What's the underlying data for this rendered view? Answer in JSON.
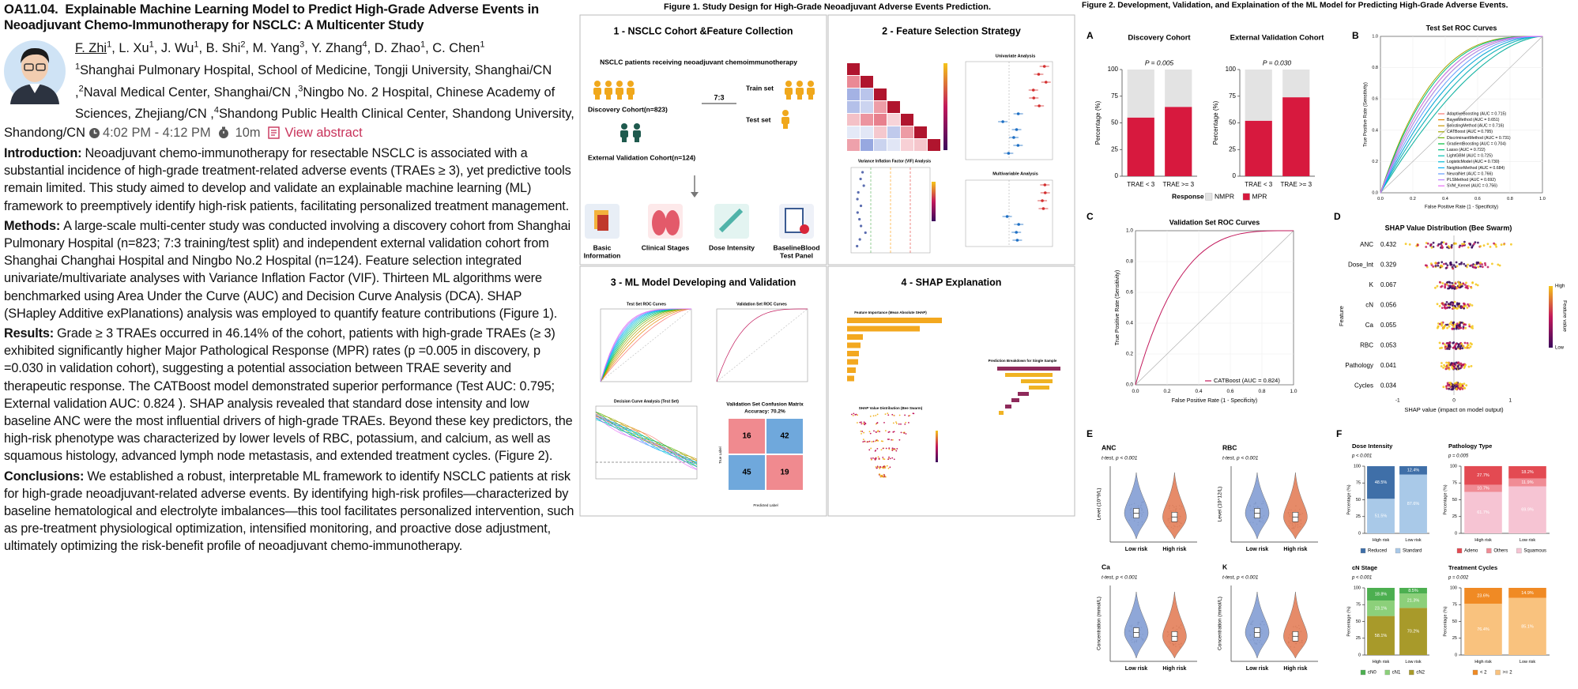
{
  "header": {
    "code": "OA11.04.",
    "title": "Explainable Machine Learning Model to Predict High-Grade Adverse Events in Neoadjuvant Chemo-Immunotherapy for NSCLC: A Multicenter Study",
    "authors": [
      {
        "name": "F. Zhi",
        "aff": "1"
      },
      {
        "name": "L. Xu",
        "aff": "1"
      },
      {
        "name": "J. Wu",
        "aff": "1"
      },
      {
        "name": "B. Shi",
        "aff": "2"
      },
      {
        "name": "M. Yang",
        "aff": "3"
      },
      {
        "name": "Y. Zhang",
        "aff": "4"
      },
      {
        "name": "D. Zhao",
        "aff": "1"
      },
      {
        "name": "C. Chen",
        "aff": "1"
      }
    ],
    "affiliations": [
      {
        "num": "1",
        "text": "Shanghai Pulmonary Hospital, School of Medicine, Tongji University, Shanghai/CN ,"
      },
      {
        "num": "2",
        "text": "Naval Medical Center, Shanghai/CN ,"
      },
      {
        "num": "3",
        "text": "Ningbo No. 2 Hospital, Chinese Academy of Sciences, Zhejiang/CN ,"
      },
      {
        "num": "4",
        "text": "Shandong Public Health Clinical Center, Shandong University, Shandong/CN"
      }
    ],
    "time": "4:02 PM - 4:12 PM",
    "duration": "10m",
    "link": "View abstract"
  },
  "sections": [
    {
      "label": "Introduction:",
      "text": "Neoadjuvant chemo-immunotherapy for resectable NSCLC is associated with a substantial incidence of high-grade treatment-related adverse events (TRAEs ≥ 3), yet predictive tools remain limited. This study aimed to develop and validate an explainable machine learning (ML) framework to preemptively identify high-risk patients, facilitating personalized treatment management."
    },
    {
      "label": "Methods:",
      "text": "A large-scale multi-center study was conducted involving a discovery cohort from Shanghai Pulmonary Hospital (n=823; 7:3 training/test split) and independent external validation cohort from Shanghai Changhai Hospital and Ningbo No.2 Hospital (n=124). Feature selection integrated univariate/multivariate analyses with Variance Inflation Factor (VIF). Thirteen ML algorithms were benchmarked using Area Under the Curve (AUC) and Decision Curve Analysis (DCA). SHAP (SHapley Additive exPlanations) analysis was employed to quantify feature contributions (Figure 1)."
    },
    {
      "label": "Results:",
      "text": "Grade ≥ 3 TRAEs occurred in 46.14% of the cohort, patients with high-grade TRAEs (≥ 3) exhibited significantly higher Major Pathological Response (MPR) rates (p =0.005 in discovery, p =0.030 in validation cohort), suggesting a potential association between TRAE severity and therapeutic response. The CATBoost model demonstrated superior performance (Test AUC: 0.795; External validation AUC: 0.824 ). SHAP analysis revealed that standard dose intensity and low baseline ANC were the most influential drivers of high-grade TRAEs. Beyond these key predictors, the high-risk phenotype was characterized by lower levels of RBC, potassium, and calcium, as well as squamous histology, advanced lymph node metastasis, and extended treatment cycles. (Figure 2)."
    },
    {
      "label": "Conclusions:",
      "text": "We established a robust, interpretable ML framework to identify NSCLC patients at risk for high-grade neoadjuvant-related adverse events. By identifying high-risk profiles—characterized by baseline hematological and electrolyte imbalances—this tool facilitates personalized intervention, such as pre-treatment physiological optimization, intensified monitoring, and proactive dose adjustment, ultimately optimizing the risk-benefit profile of neoadjuvant chemo-immunotherapy."
    }
  ],
  "figure1": {
    "title": "Figure 1. Study Design for High-Grade Neoadjuvant Adverse Events Prediction.",
    "panels": [
      "1 - NSCLC Cohort &Feature Collection",
      "2 - Feature Selection Strategy",
      "3 - ML Model Developing and Validation",
      "4 - SHAP Explanation"
    ],
    "cohort": {
      "population": "NSCLC patients receiving neoadjuvant chemoimmunotherapy",
      "discovery": "Discovery Cohort(n=823)",
      "ratio": "7:3",
      "train": "Train set",
      "test": "Test set",
      "external": "External Validation Cohort(n=124)",
      "features": [
        [
          "Basic",
          "Information"
        ],
        [
          "Clinical Stages"
        ],
        [
          "Dose Intensity"
        ],
        [
          "BaselineBlood",
          "Test Panel"
        ]
      ]
    },
    "selection": {
      "univariate": "Univariate Analysis",
      "multivariable": "Multivariable Analysis",
      "vif": "Variance Inflation Factor (VIF) Analysis"
    },
    "model": {
      "test_roc": "Test Set ROC Curves",
      "val_roc": "Validation Set ROC Curves",
      "dca": "Decision Curve Analysis (Test Set)",
      "cm_title": "Validation Set Confusion Matrix",
      "accuracy": "Accuracy: 70.2%",
      "cm": [
        [
          "16",
          "42"
        ],
        [
          "45",
          "19"
        ]
      ],
      "true_label": "True Label",
      "pred_label": "Predicted Label"
    },
    "shap": {
      "importance": "Feature Importance (Mean Absolute SHAP)",
      "breakdown": "Prediction Breakdown for Single Sample",
      "beeswarm": "SHAP Value Distribution (Bee Swarm)"
    }
  },
  "figure2": {
    "title": "Figure 2. Development, Validation, and Explaination of the ML Model for Predicting High-Grade Adverse Events.",
    "letters": [
      "A",
      "B",
      "C",
      "D",
      "E",
      "F"
    ],
    "B": {
      "title": "Test Set ROC Curves",
      "xlabel": "False Positive Rate (1 - Specificity)",
      "ylabel": "True Positive Rate (Sensitivity)",
      "ticks": [
        "0.0",
        "0.2",
        "0.4",
        "0.6",
        "0.8",
        "1.0"
      ],
      "legend": [
        {
          "label": "AdaptiveBoosting (AUC = 0.715)",
          "color": "#f8766d"
        },
        {
          "label": "BayesMethod (AUC = 0.651)",
          "color": "#e58700"
        },
        {
          "label": "BoostingMethod (AUC = 0.716)",
          "color": "#c99800"
        },
        {
          "label": "CATBoost (AUC = 0.795)",
          "color": "#a3a500"
        },
        {
          "label": "DiscriminantMethod (AUC = 0.731)",
          "color": "#6bb100"
        },
        {
          "label": "GradientBoosting (AUC = 0.704)",
          "color": "#00ba38"
        },
        {
          "label": "Lasso (AUC = 0.722)",
          "color": "#00bf7d"
        },
        {
          "label": "LightGBM (AUC = 0.725)",
          "color": "#00c0af"
        },
        {
          "label": "LogisticModel (AUC = 0.730)",
          "color": "#00bcd8"
        },
        {
          "label": "NeighborMethod (AUC = 0.684)",
          "color": "#00b0f6"
        },
        {
          "label": "NeuralNet (AUC = 0.766)",
          "color": "#619cff"
        },
        {
          "label": "PLSMethod (AUC = 0.692)",
          "color": "#b983ff"
        },
        {
          "label": "SVM_Kernel (AUC = 0.756)",
          "color": "#e76bf3"
        }
      ]
    },
    "C": {
      "title": "Validation Set ROC Curves",
      "xlabel": "False Positive Rate (1 - Specificity)",
      "ylabel": "True Positive Rate (Sensitivity)",
      "ticks": [
        "0.0",
        "0.2",
        "0.4",
        "0.6",
        "0.8",
        "1.0"
      ],
      "legend": [
        {
          "label": "CATBoost (AUC = 0.824)",
          "color": "#c2185b"
        }
      ]
    },
    "D": {
      "title": "SHAP Value Distribution (Bee Swarm)",
      "xlabel": "SHAP value (impact on model output)",
      "ylabel": "Feature",
      "ticks": [
        "-1",
        "0",
        "1"
      ],
      "colorbar": "Feature value",
      "high": "High",
      "low": "Low",
      "features": [
        {
          "name": "ANC",
          "value": "0.432"
        },
        {
          "name": "Dose_Int",
          "value": "0.329"
        },
        {
          "name": "K",
          "value": "0.067"
        },
        {
          "name": "cN",
          "value": "0.056"
        },
        {
          "name": "Ca",
          "value": "0.055"
        },
        {
          "name": "RBC",
          "value": "0.053"
        },
        {
          "name": "Pathology",
          "value": "0.041"
        },
        {
          "name": "Cycles",
          "value": "0.034"
        }
      ]
    },
    "E": {
      "categories": [
        "Low risk",
        "High risk"
      ],
      "colors": [
        "#7b98d1",
        "#e2774f"
      ],
      "panels": [
        {
          "name": "ANC",
          "test": "t-test, p < 0.001",
          "ylabel": "Level (10^9/L)"
        },
        {
          "name": "RBC",
          "test": "t-test, p < 0.001",
          "ylabel": "Level (10^12/L)"
        },
        {
          "name": "Ca",
          "test": "t-test, p < 0.001",
          "ylabel": "Concentration (mmol/L)"
        },
        {
          "name": "K",
          "test": "t-test, p < 0.001",
          "ylabel": "Concentration (mmol/L)"
        }
      ]
    }
  },
  "chart_data": [
    {
      "type": "bar",
      "stacked": true,
      "title": "Discovery Cohort",
      "subtitle": "P = 0.005",
      "ylabel": "Percentage (%)",
      "legend_title": "Response",
      "categories": [
        "TRAE < 3",
        "TRAE >= 3"
      ],
      "ylim": [
        0,
        100
      ],
      "yticks": [
        0,
        25,
        50,
        75,
        100
      ],
      "series": [
        {
          "name": "MPR",
          "color": "#d7193e",
          "values": [
            55,
            65
          ]
        },
        {
          "name": "NMPR",
          "color": "#e3e3e3",
          "values": [
            45,
            35
          ]
        }
      ]
    },
    {
      "type": "bar",
      "stacked": true,
      "title": "External Validation Cohort",
      "subtitle": "P = 0.030",
      "ylabel": "Percentage (%)",
      "categories": [
        "TRAE < 3",
        "TRAE >= 3"
      ],
      "ylim": [
        0,
        100
      ],
      "yticks": [
        0,
        25,
        50,
        75,
        100
      ],
      "series": [
        {
          "color": "#d7193e",
          "values": [
            52,
            74
          ]
        },
        {
          "color": "#e3e3e3",
          "values": [
            48,
            26
          ]
        }
      ]
    },
    {
      "type": "bar",
      "stacked": true,
      "title": "Dose Intensity",
      "subtitle": "p < 0.001",
      "ylabel": "Percentage (%)",
      "categories": [
        "High risk",
        "Low risk"
      ],
      "ylim": [
        0,
        100
      ],
      "yticks": [
        0,
        25,
        50,
        75,
        100
      ],
      "series": [
        {
          "name": "Standard",
          "color": "#a9c9e8",
          "values": [
            51.5,
            87.6
          ],
          "value_labels": [
            "51.5%",
            "87.6%"
          ]
        },
        {
          "name": "Reduced",
          "color": "#3f6fa8",
          "values": [
            48.5,
            12.4
          ],
          "value_labels": [
            "48.5%",
            "12.4%"
          ]
        }
      ]
    },
    {
      "type": "bar",
      "stacked": true,
      "title": "Pathology Type",
      "subtitle": "p = 0.005",
      "ylabel": "Percentage (%)",
      "categories": [
        "High risk",
        "Low risk"
      ],
      "ylim": [
        0,
        100
      ],
      "yticks": [
        0,
        25,
        50,
        75,
        100
      ],
      "series": [
        {
          "name": "Squamous",
          "color": "#f6c4d3",
          "values": [
            61.7,
            69.9
          ],
          "value_labels": [
            "61.7%",
            "69.9%"
          ]
        },
        {
          "name": "Others",
          "color": "#f08c95",
          "values": [
            10.7,
            11.9
          ],
          "value_labels": [
            "10.7%",
            "11.9%"
          ]
        },
        {
          "name": "Adeno",
          "color": "#e34a52",
          "values": [
            27.7,
            18.2
          ],
          "value_labels": [
            "27.7%",
            "18.2%"
          ]
        }
      ]
    },
    {
      "type": "bar",
      "stacked": true,
      "title": "cN Stage",
      "subtitle": "p < 0.001",
      "ylabel": "Percentage (%)",
      "categories": [
        "High risk",
        "Low risk"
      ],
      "ylim": [
        0,
        100
      ],
      "yticks": [
        0,
        25,
        50,
        75,
        100
      ],
      "series": [
        {
          "name": "cN2",
          "color": "#a89a2a",
          "values": [
            58.1,
            70.2
          ],
          "value_labels": [
            "58.1%",
            "70.2%"
          ]
        },
        {
          "name": "cN1",
          "color": "#8cd07a",
          "values": [
            23.1,
            21.3
          ],
          "value_labels": [
            "23.1%",
            "21.3%"
          ]
        },
        {
          "name": "cN0",
          "color": "#4caf50",
          "values": [
            18.8,
            8.5
          ],
          "value_labels": [
            "18.8%",
            "8.5%"
          ]
        }
      ]
    },
    {
      "type": "bar",
      "stacked": true,
      "title": "Treatment Cycles",
      "subtitle": "p = 0.002",
      "ylabel": "Percentage (%)",
      "categories": [
        "High risk",
        "Low risk"
      ],
      "ylim": [
        0,
        100
      ],
      "yticks": [
        0,
        25,
        50,
        75,
        100
      ],
      "series": [
        {
          "name": ">= 2",
          "color": "#f9c27e",
          "values": [
            76.4,
            85.1
          ],
          "value_labels": [
            "76.4%",
            "85.1%"
          ]
        },
        {
          "name": "< 2",
          "color": "#f08a24",
          "values": [
            23.6,
            14.9
          ],
          "value_labels": [
            "23.6%",
            "14.9%"
          ]
        }
      ]
    }
  ]
}
